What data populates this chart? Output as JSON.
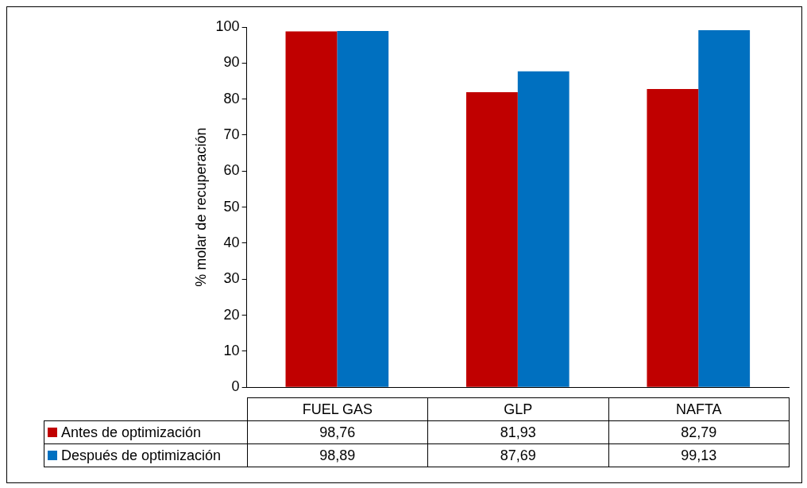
{
  "chart_data": {
    "type": "bar",
    "ylabel": "% molar de recuperación",
    "categories": [
      "FUEL GAS",
      "GLP",
      "NAFTA"
    ],
    "series": [
      {
        "name": "Antes de optimización",
        "color": "#c00000",
        "values": [
          98.76,
          81.93,
          82.79
        ],
        "value_labels": [
          "98,76",
          "81,93",
          "82,79"
        ]
      },
      {
        "name": "Después de optimización",
        "color": "#0070c0",
        "values": [
          98.89,
          87.69,
          99.13
        ],
        "value_labels": [
          "98,89",
          "87,69",
          "99,13"
        ]
      }
    ],
    "ylim": [
      0,
      100
    ],
    "yticks": [
      0,
      10,
      20,
      30,
      40,
      50,
      60,
      70,
      80,
      90,
      100
    ],
    "grid": false,
    "legend": "bottom"
  }
}
